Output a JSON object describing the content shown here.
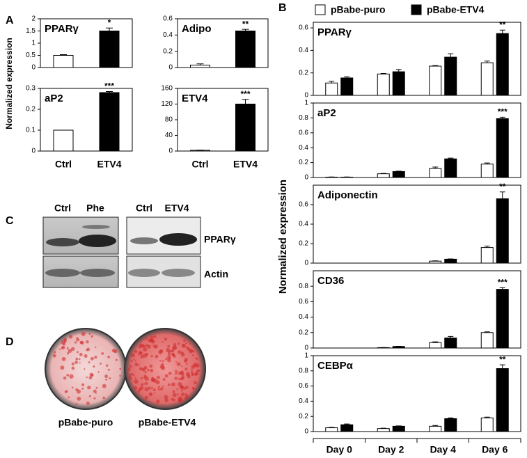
{
  "panel_labels": [
    "A",
    "B",
    "C",
    "D"
  ],
  "chart_data": [
    {
      "type": "bar",
      "title": "PPARγ",
      "ylabel": "Normalized expression",
      "ylim": [
        0,
        2
      ],
      "yticks": [
        0,
        0.5,
        1,
        1.5,
        2
      ],
      "values": [
        0.5,
        1.5
      ],
      "errors": [
        0.03,
        0.12
      ],
      "colors": [
        "#ffffff",
        "#000000"
      ],
      "sig": [
        null,
        "*"
      ]
    },
    {
      "type": "bar",
      "title": "Adipo",
      "ylim": [
        0,
        0.6
      ],
      "yticks": [
        0,
        0.2,
        0.4,
        0.6
      ],
      "values": [
        0.03,
        0.45
      ],
      "errors": [
        0.015,
        0.02
      ],
      "colors": [
        "#ffffff",
        "#000000"
      ],
      "sig": [
        null,
        "**"
      ]
    },
    {
      "type": "bar",
      "title": "aP2",
      "ylim": [
        0,
        0.3
      ],
      "yticks": [
        0,
        0.1,
        0.2,
        0.3
      ],
      "categories": [
        "Ctrl",
        "ETV4"
      ],
      "values": [
        0.1,
        0.28
      ],
      "errors": [
        0,
        0.005
      ],
      "colors": [
        "#ffffff",
        "#000000"
      ],
      "sig": [
        null,
        "***"
      ]
    },
    {
      "type": "bar",
      "title": "ETV4",
      "ylim": [
        0,
        160
      ],
      "yticks": [
        0,
        40,
        80,
        120,
        160
      ],
      "categories": [
        "Ctrl",
        "ETV4"
      ],
      "values": [
        2,
        120
      ],
      "errors": [
        0.5,
        12
      ],
      "colors": [
        "#ffffff",
        "#000000"
      ],
      "sig": [
        null,
        "***"
      ]
    },
    {
      "type": "grouped_bar",
      "title": "PPARγ",
      "ylabel": "Normalized expression",
      "ylim": [
        0,
        0.65
      ],
      "yticks": [
        0,
        0.2,
        0.4,
        0.6
      ],
      "series": [
        {
          "name": "pBabe-puro",
          "color": "#ffffff",
          "values": [
            0.11,
            0.19,
            0.26,
            0.29
          ],
          "errors": [
            0.015,
            0.005,
            0.005,
            0.015
          ],
          "sig": [
            null,
            null,
            null,
            null
          ]
        },
        {
          "name": "pBabe-ETV4",
          "color": "#000000",
          "values": [
            0.155,
            0.21,
            0.34,
            0.55
          ],
          "errors": [
            0.01,
            0.02,
            0.03,
            0.03
          ],
          "sig": [
            null,
            null,
            null,
            "**"
          ]
        }
      ]
    },
    {
      "type": "grouped_bar",
      "title": "aP2",
      "ylim": [
        0,
        1
      ],
      "yticks": [
        0,
        0.2,
        0.4,
        0.6,
        0.8,
        1
      ],
      "series": [
        {
          "color": "#ffffff",
          "values": [
            0.005,
            0.05,
            0.12,
            0.18
          ],
          "errors": [
            0.002,
            0.005,
            0.02,
            0.015
          ],
          "sig": [
            null,
            null,
            null,
            null
          ]
        },
        {
          "color": "#000000",
          "values": [
            0.005,
            0.08,
            0.25,
            0.79
          ],
          "errors": [
            0.002,
            0.005,
            0.01,
            0.02
          ],
          "sig": [
            null,
            null,
            null,
            "***"
          ]
        }
      ]
    },
    {
      "type": "grouped_bar",
      "title": "Adiponectin",
      "ylim": [
        0,
        0.8
      ],
      "yticks": [
        0,
        0.2,
        0.4,
        0.6
      ],
      "series": [
        {
          "color": "#ffffff",
          "values": [
            0,
            0,
            0.02,
            0.16
          ],
          "errors": [
            0,
            0,
            0.003,
            0.015
          ],
          "sig": [
            null,
            null,
            null,
            null
          ]
        },
        {
          "color": "#000000",
          "values": [
            0,
            0,
            0.04,
            0.66
          ],
          "errors": [
            0,
            0,
            0.003,
            0.07
          ],
          "sig": [
            null,
            null,
            null,
            "**"
          ]
        }
      ]
    },
    {
      "type": "grouped_bar",
      "title": "CD36",
      "ylim": [
        0,
        1
      ],
      "yticks": [
        0,
        0.2,
        0.4,
        0.6,
        0.8
      ],
      "series": [
        {
          "color": "#ffffff",
          "values": [
            0,
            0.005,
            0.07,
            0.2
          ],
          "errors": [
            0,
            0.002,
            0.01,
            0.01
          ],
          "sig": [
            null,
            null,
            null,
            null
          ]
        },
        {
          "color": "#000000",
          "values": [
            0,
            0.02,
            0.13,
            0.76
          ],
          "errors": [
            0,
            0.003,
            0.02,
            0.02
          ],
          "sig": [
            null,
            null,
            null,
            "***"
          ]
        }
      ]
    },
    {
      "type": "grouped_bar",
      "title": "CEBPα",
      "ylim": [
        0,
        1
      ],
      "yticks": [
        0,
        0.2,
        0.4,
        0.6,
        0.8,
        1
      ],
      "categories": [
        "Day 0",
        "Day 2",
        "Day 4",
        "Day 6"
      ],
      "series": [
        {
          "color": "#ffffff",
          "values": [
            0.05,
            0.04,
            0.07,
            0.18
          ],
          "errors": [
            0.005,
            0.005,
            0.01,
            0.01
          ],
          "sig": [
            null,
            null,
            null,
            null
          ]
        },
        {
          "color": "#000000",
          "values": [
            0.09,
            0.07,
            0.17,
            0.83
          ],
          "errors": [
            0.01,
            0.005,
            0.01,
            0.05
          ],
          "sig": [
            null,
            null,
            null,
            "**"
          ]
        }
      ]
    }
  ],
  "blot": {
    "lanes": [
      "Ctrl",
      "Phe",
      "Ctrl",
      "ETV4"
    ],
    "rows": [
      "PPARγ",
      "Actin"
    ]
  },
  "plates": {
    "labels": [
      "pBabe-puro",
      "pBabe-ETV4"
    ]
  }
}
